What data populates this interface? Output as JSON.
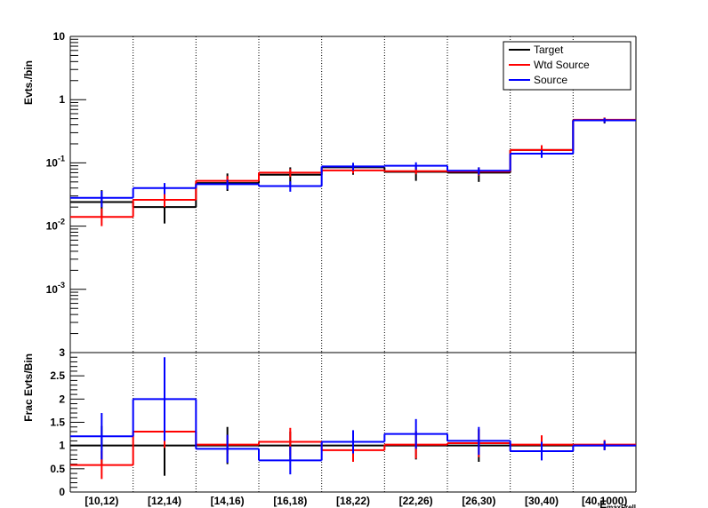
{
  "chart_data": [
    {
      "type": "line",
      "scale": "log",
      "ylabel": "Evts./bin",
      "ylim": [
        0.0001,
        10
      ],
      "categories": [
        "[10,12)",
        "[12,14)",
        "[14,16)",
        "[16,18)",
        "[18,22)",
        "[22,26)",
        "[26,30)",
        "[30,40)",
        "[40,1000)"
      ],
      "ytick_labels": [
        {
          "value": 10,
          "base": "10",
          "exp": ""
        },
        {
          "value": 1,
          "base": "1",
          "exp": ""
        },
        {
          "value": 0.1,
          "base": "10",
          "exp": "-1"
        },
        {
          "value": 0.01,
          "base": "10",
          "exp": "-2"
        },
        {
          "value": 0.001,
          "base": "10",
          "exp": "-3"
        }
      ],
      "legend": {
        "position": "top-right",
        "entries": [
          "Target",
          "Wtd Source",
          "Source"
        ]
      },
      "series": [
        {
          "name": "Target",
          "color": "#000000",
          "values": [
            0.024,
            0.02,
            0.048,
            0.065,
            0.085,
            0.072,
            0.07,
            0.16,
            0.47
          ],
          "err_lo": [
            0.01,
            0.009,
            0.012,
            0.02,
            0.02,
            0.02,
            0.02,
            0.03,
            0.05
          ],
          "err_hi": [
            0.013,
            0.016,
            0.02,
            0.02,
            0.015,
            0.02,
            0.015,
            0.03,
            0.05
          ]
        },
        {
          "name": "Wtd Source",
          "color": "#ff0000",
          "values": [
            0.014,
            0.026,
            0.052,
            0.07,
            0.076,
            0.074,
            0.073,
            0.16,
            0.48
          ],
          "err_lo": [
            0.004,
            0.006,
            0.01,
            0.01,
            0.008,
            0.008,
            0.01,
            0.02,
            0.04
          ],
          "err_hi": [
            0.005,
            0.007,
            0.01,
            0.01,
            0.008,
            0.008,
            0.01,
            0.03,
            0.04
          ]
        },
        {
          "name": "Source",
          "color": "#0000ff",
          "values": [
            0.028,
            0.04,
            0.046,
            0.043,
            0.088,
            0.09,
            0.075,
            0.14,
            0.47
          ],
          "err_lo": [
            0.008,
            0.008,
            0.008,
            0.008,
            0.012,
            0.012,
            0.01,
            0.02,
            0.04
          ],
          "err_hi": [
            0.008,
            0.008,
            0.008,
            0.008,
            0.012,
            0.012,
            0.01,
            0.02,
            0.04
          ]
        }
      ]
    },
    {
      "type": "line",
      "ylabel": "Frac Evts/Bin",
      "ylim": [
        0,
        3
      ],
      "yticks": [
        0,
        0.5,
        1,
        1.5,
        2,
        2.5,
        3
      ],
      "ytick_labels": [
        "0",
        "0.5",
        "1",
        "1.5",
        "2",
        "2.5",
        "3"
      ],
      "categories": [
        "[10,12)",
        "[12,14)",
        "[14,16)",
        "[16,18)",
        "[18,22)",
        "[22,26)",
        "[26,30)",
        "[30,40)",
        "[40,1000)"
      ],
      "xlabel": "E_maxFrell",
      "series": [
        {
          "name": "Target",
          "color": "#000000",
          "values": [
            1,
            1,
            1,
            1,
            1,
            1,
            1,
            1,
            1
          ],
          "err_lo": [
            0.42,
            0.65,
            0.4,
            0.3,
            0.25,
            0.3,
            0.35,
            0.2,
            0.1
          ],
          "err_hi": [
            0.42,
            0.65,
            0.4,
            0.3,
            0.25,
            0.3,
            0.35,
            0.2,
            0.1
          ]
        },
        {
          "name": "Wtd Source",
          "color": "#ff0000",
          "values": [
            0.58,
            1.3,
            1.02,
            1.08,
            0.9,
            1.02,
            1.05,
            1.02,
            1.02
          ],
          "err_lo": [
            0.3,
            0.35,
            0.2,
            0.3,
            0.25,
            0.3,
            0.3,
            0.2,
            0.1
          ],
          "err_hi": [
            0.3,
            0.35,
            0.2,
            0.3,
            0.25,
            0.3,
            0.3,
            0.2,
            0.1
          ]
        },
        {
          "name": "Source",
          "color": "#0000ff",
          "values": [
            1.2,
            2.0,
            0.93,
            0.68,
            1.08,
            1.25,
            1.1,
            0.88,
            1.0
          ],
          "err_lo": [
            0.5,
            0.9,
            0.3,
            0.3,
            0.25,
            0.32,
            0.3,
            0.2,
            0.1
          ],
          "err_hi": [
            0.5,
            0.9,
            0.3,
            0.3,
            0.25,
            0.32,
            0.3,
            0.2,
            0.1
          ]
        }
      ]
    }
  ]
}
